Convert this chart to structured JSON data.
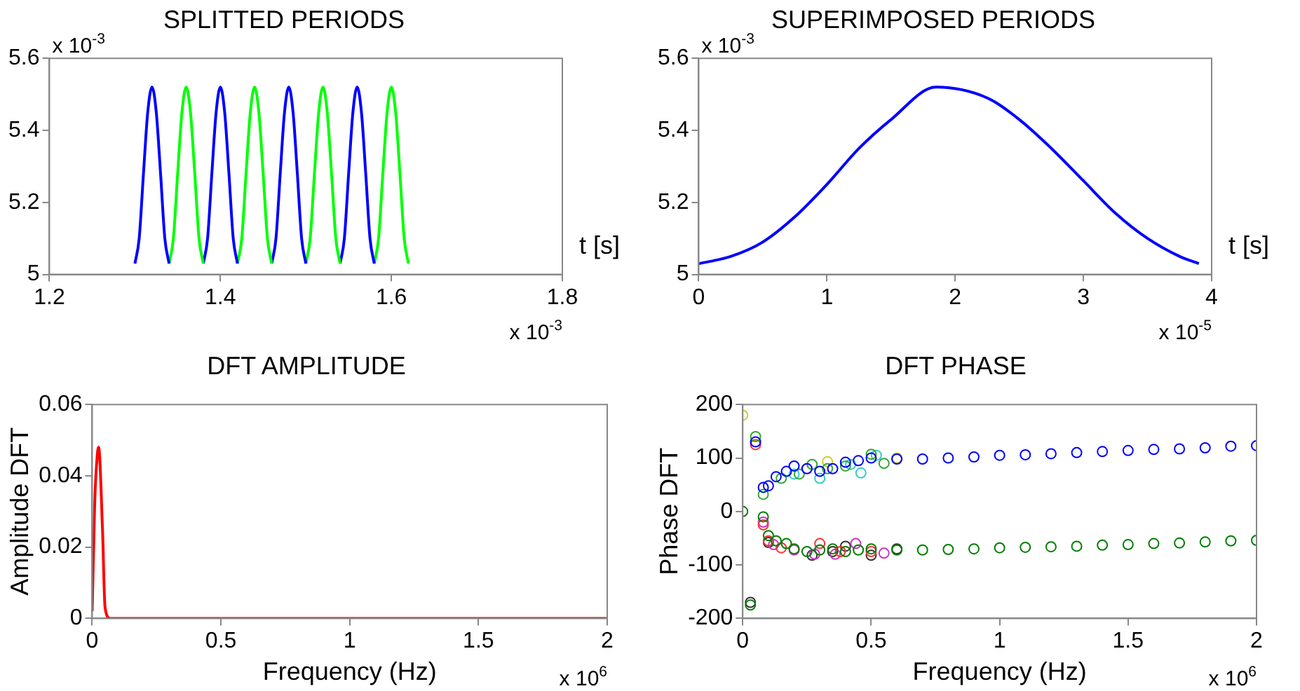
{
  "chart_data": [
    {
      "type": "line",
      "title": "SPLITTED PERIODS",
      "xlabel": "t [s]",
      "xlim": [
        1.2,
        1.8
      ],
      "xticks": [
        1.2,
        1.4,
        1.6,
        1.8
      ],
      "ylim": [
        5,
        5.6
      ],
      "yticks": [
        5,
        5.2,
        5.4,
        5.6
      ],
      "marker": "none",
      "annotations": [
        "x 10$^{-3}$",
        "x 10$^{-3}$"
      ],
      "series": [
        {
          "color": "#0000ff",
          "x": [
            1.3,
            1.305,
            1.31,
            1.315,
            1.32,
            1.325,
            1.33,
            1.335,
            1.34
          ],
          "values": [
            5.03,
            5.1,
            5.28,
            5.45,
            5.52,
            5.45,
            5.28,
            5.1,
            5.03
          ]
        },
        {
          "color": "#00ff00",
          "x": [
            1.34,
            1.345,
            1.35,
            1.355,
            1.36,
            1.365,
            1.37,
            1.375,
            1.38
          ],
          "values": [
            5.03,
            5.1,
            5.28,
            5.45,
            5.52,
            5.45,
            5.28,
            5.1,
            5.03
          ]
        },
        {
          "color": "#0000ff",
          "x": [
            1.38,
            1.385,
            1.39,
            1.395,
            1.4,
            1.405,
            1.41,
            1.415,
            1.42
          ],
          "values": [
            5.03,
            5.1,
            5.28,
            5.45,
            5.52,
            5.45,
            5.28,
            5.1,
            5.03
          ]
        },
        {
          "color": "#00ff00",
          "x": [
            1.42,
            1.425,
            1.43,
            1.435,
            1.44,
            1.445,
            1.45,
            1.455,
            1.46
          ],
          "values": [
            5.03,
            5.1,
            5.28,
            5.45,
            5.52,
            5.45,
            5.28,
            5.1,
            5.03
          ]
        },
        {
          "color": "#0000ff",
          "x": [
            1.46,
            1.465,
            1.47,
            1.475,
            1.48,
            1.485,
            1.49,
            1.495,
            1.5
          ],
          "values": [
            5.03,
            5.1,
            5.28,
            5.45,
            5.52,
            5.45,
            5.28,
            5.1,
            5.03
          ]
        },
        {
          "color": "#00ff00",
          "x": [
            1.5,
            1.505,
            1.51,
            1.515,
            1.52,
            1.525,
            1.53,
            1.535,
            1.54
          ],
          "values": [
            5.03,
            5.1,
            5.28,
            5.45,
            5.52,
            5.45,
            5.28,
            5.1,
            5.03
          ]
        },
        {
          "color": "#0000ff",
          "x": [
            1.54,
            1.545,
            1.55,
            1.555,
            1.56,
            1.565,
            1.57,
            1.575,
            1.58
          ],
          "values": [
            5.03,
            5.1,
            5.28,
            5.45,
            5.52,
            5.45,
            5.28,
            5.1,
            5.03
          ]
        },
        {
          "color": "#00ff00",
          "x": [
            1.58,
            1.585,
            1.59,
            1.595,
            1.6,
            1.605,
            1.61,
            1.615,
            1.62
          ],
          "values": [
            5.03,
            5.1,
            5.28,
            5.45,
            5.52,
            5.45,
            5.28,
            5.1,
            5.03
          ]
        }
      ]
    },
    {
      "type": "line",
      "title": "SUPERIMPOSED PERIODS",
      "xlabel": "t [s]",
      "xlim": [
        0,
        4
      ],
      "xticks": [
        0,
        1,
        2,
        3,
        4
      ],
      "ylim": [
        5,
        5.6
      ],
      "yticks": [
        5,
        5.2,
        5.4,
        5.6
      ],
      "marker": "none",
      "annotations": [
        "x 10$^{-3}$",
        "x 10$^{-5}$"
      ],
      "series": [
        {
          "color": "#0000ff",
          "x": [
            0,
            0.25,
            0.5,
            0.75,
            1,
            1.25,
            1.5,
            1.85,
            2.25,
            2.5,
            2.75,
            3,
            3.25,
            3.5,
            3.75,
            3.9
          ],
          "values": [
            5.03,
            5.05,
            5.09,
            5.16,
            5.25,
            5.35,
            5.43,
            5.52,
            5.49,
            5.43,
            5.35,
            5.26,
            5.17,
            5.1,
            5.05,
            5.03
          ]
        }
      ]
    },
    {
      "type": "line",
      "title": "DFT AMPLITUDE",
      "xlabel": "Frequency (Hz)",
      "ylabel": "Amplitude DFT",
      "xlim": [
        0,
        2
      ],
      "xticks": [
        0,
        0.5,
        1,
        1.5,
        2
      ],
      "ylim": [
        0,
        0.06
      ],
      "yticks": [
        0,
        0.02,
        0.04,
        0.06
      ],
      "marker": "none",
      "annotations": [
        "x 10$^{6}$"
      ],
      "series": [
        {
          "color": "#ff0000",
          "x": [
            0,
            0.01,
            0.02,
            0.025,
            0.04,
            0.05,
            0.07,
            0.1,
            2
          ],
          "values": [
            0.002,
            0.033,
            0.046,
            0.048,
            0.025,
            0.003,
            0,
            0,
            0
          ]
        }
      ]
    },
    {
      "type": "scatter",
      "title": "DFT PHASE",
      "xlabel": "Frequency (Hz)",
      "ylabel": "Phase DFT",
      "xlim": [
        0,
        2
      ],
      "xticks": [
        0,
        0.5,
        1,
        1.5,
        2
      ],
      "ylim": [
        -200,
        200
      ],
      "yticks": [
        -200,
        -100,
        0,
        100,
        200
      ],
      "marker": "circle",
      "annotations": [
        "x 10$^{6}$"
      ],
      "series": [
        {
          "color": "#0000ff",
          "x": [
            0.05,
            0.08,
            0.1,
            0.13,
            0.17,
            0.2,
            0.25,
            0.3,
            0.35,
            0.4,
            0.45,
            0.5,
            0.6,
            0.7,
            0.8,
            0.9,
            1.0,
            1.1,
            1.2,
            1.3,
            1.4,
            1.5,
            1.6,
            1.7,
            1.8,
            1.9,
            2.0
          ],
          "values": [
            130,
            45,
            48,
            65,
            75,
            85,
            80,
            75,
            80,
            92,
            95,
            100,
            98,
            98,
            100,
            102,
            105,
            106,
            108,
            110,
            112,
            114,
            116,
            117,
            119,
            122,
            123
          ]
        },
        {
          "color": "#008000",
          "x": [
            0,
            0.03,
            0.08,
            0.1,
            0.13,
            0.17,
            0.2,
            0.25,
            0.3,
            0.35,
            0.4,
            0.45,
            0.5,
            0.6,
            0.7,
            0.8,
            0.9,
            1.0,
            1.1,
            1.2,
            1.3,
            1.4,
            1.5,
            1.6,
            1.7,
            1.8,
            1.9,
            2.0
          ],
          "values": [
            0,
            -175,
            -10,
            -45,
            -55,
            -60,
            -70,
            -75,
            -72,
            -70,
            -75,
            -72,
            -70,
            -72,
            -72,
            -71,
            -70,
            -68,
            -67,
            -66,
            -65,
            -63,
            -62,
            -60,
            -59,
            -57,
            -55,
            -54
          ]
        },
        {
          "color": "#33aa33",
          "x": [
            0.05,
            0.08,
            0.15,
            0.22,
            0.27,
            0.33,
            0.4,
            0.5,
            0.55
          ],
          "values": [
            140,
            32,
            62,
            70,
            88,
            80,
            85,
            107,
            90
          ]
        },
        {
          "color": "#cccc33",
          "x": [
            0,
            0.33,
            0.6
          ],
          "values": [
            180,
            93,
            100
          ]
        },
        {
          "color": "#33cccc",
          "x": [
            0.2,
            0.3,
            0.42,
            0.46,
            0.52
          ],
          "values": [
            70,
            62,
            88,
            72,
            105
          ]
        },
        {
          "color": "#ff3333",
          "x": [
            0.05,
            0.08,
            0.1,
            0.15,
            0.3,
            0.38,
            0.5
          ],
          "values": [
            125,
            -25,
            -55,
            -68,
            -60,
            -75,
            -75
          ]
        },
        {
          "color": "#cc33cc",
          "x": [
            0.08,
            0.12,
            0.2,
            0.28,
            0.36,
            0.44,
            0.55
          ],
          "values": [
            -20,
            -62,
            -72,
            -80,
            -80,
            -60,
            -78
          ]
        },
        {
          "color": "#333333",
          "x": [
            0.03,
            0.1,
            0.27,
            0.35,
            0.4,
            0.5,
            0.6
          ],
          "values": [
            -170,
            -58,
            -82,
            -75,
            -65,
            -82,
            -70
          ]
        }
      ]
    }
  ]
}
